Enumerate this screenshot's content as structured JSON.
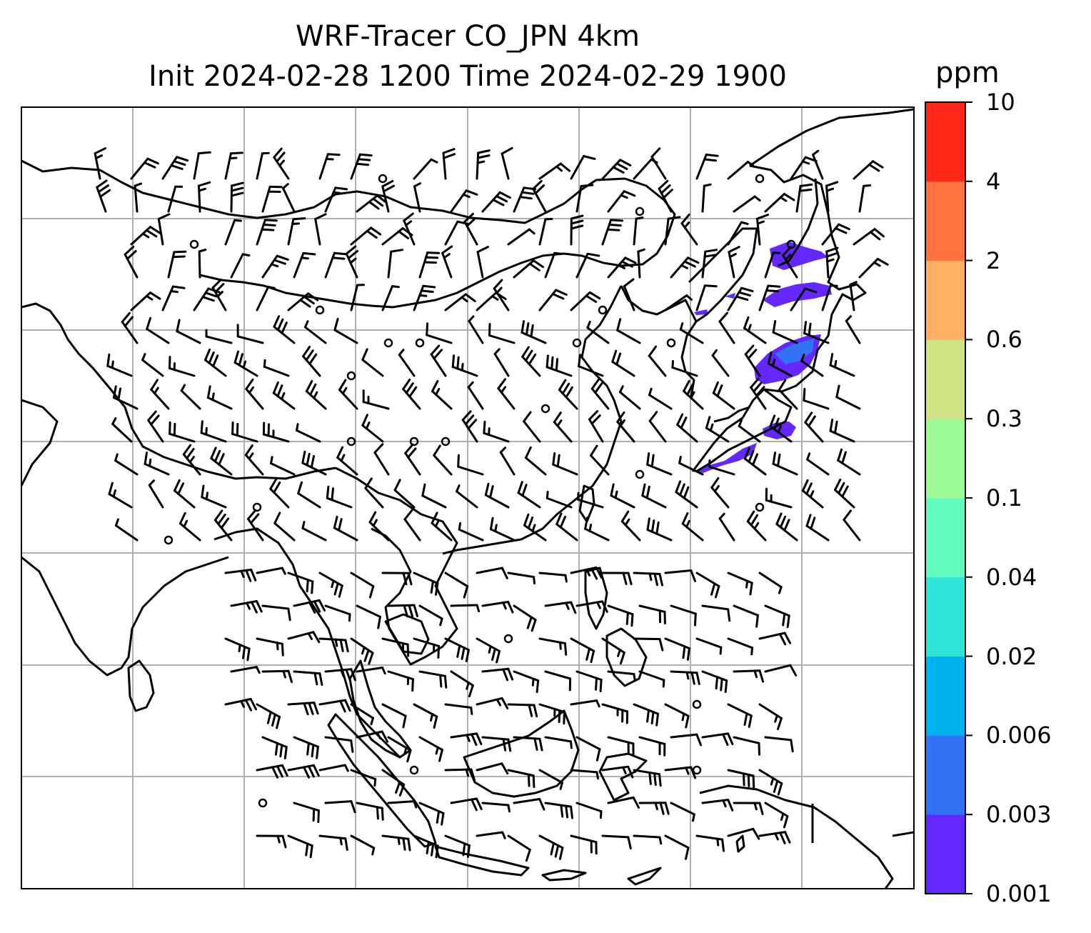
{
  "title": {
    "line1": "WRF-Tracer CO_JPN 4km",
    "line2": "Init 2024-02-28 1200 Time 2024-02-29 1900"
  },
  "colorbar": {
    "units": "ppm",
    "levels": [
      "0.001",
      "0.003",
      "0.006",
      "0.02",
      "0.04",
      "0.1",
      "0.3",
      "0.6",
      "2",
      "4",
      "10"
    ],
    "colors": [
      "#6428ff",
      "#3273f5",
      "#00b1f0",
      "#2fe3d6",
      "#62fbbf",
      "#9dfb95",
      "#d0e384",
      "#ffb061",
      "#ff733e",
      "#ff2718"
    ]
  },
  "map": {
    "gridlines": true,
    "coastline_color": "#000000",
    "grid_color": "#b0b0b0",
    "wind_barbs": true,
    "plume_color": "#6428ff"
  }
}
